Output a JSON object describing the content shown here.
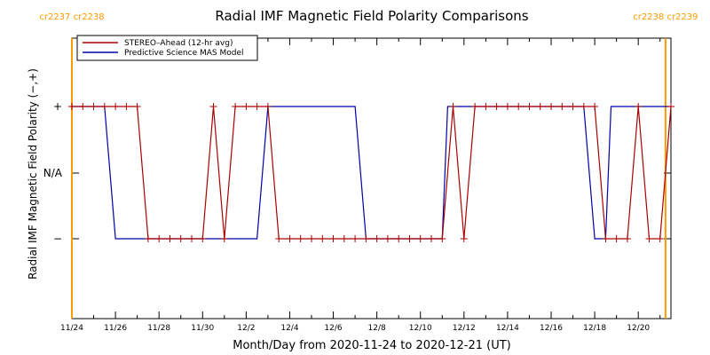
{
  "chart_data": {
    "type": "line",
    "title": "Radial IMF Magnetic Field Polarity Comparisons",
    "xlabel": "Month/Day from 2020-11-24 to 2020-12-21 (UT)",
    "ylabel": "Radial IMF Magnetic Field Polarity (−,+)",
    "x_range": [
      "2020-11-24",
      "2020-12-21 12:00"
    ],
    "y_levels": [
      {
        "label": "−",
        "value": -1
      },
      {
        "label": "N/A",
        "value": 0
      },
      {
        "label": "+",
        "value": 1
      }
    ],
    "x_ticks": [
      "11/24",
      "11/26",
      "11/28",
      "11/30",
      "12/2",
      "12/4",
      "12/6",
      "12/8",
      "12/10",
      "12/12",
      "12/14",
      "12/16",
      "12/18",
      "12/20"
    ],
    "carrington_markers": [
      {
        "date": "2020-11-24",
        "label": "cr2237 cr2238"
      },
      {
        "date": "2020-12-21 06:00",
        "label": "cr2238 cr2239"
      }
    ],
    "marker_color": "#ff9900",
    "grid": false,
    "legend_position": "top-left",
    "series": [
      {
        "name": "STEREO–Ahead (12-hr avg)",
        "color": "#aa0000",
        "marker": "+",
        "points": [
          [
            "2020-11-24 00:00",
            1
          ],
          [
            "2020-11-24 12:00",
            1
          ],
          [
            "2020-11-25 00:00",
            1
          ],
          [
            "2020-11-25 12:00",
            1
          ],
          [
            "2020-11-26 00:00",
            1
          ],
          [
            "2020-11-26 12:00",
            1
          ],
          [
            "2020-11-27 00:00",
            1
          ],
          [
            "2020-11-27 12:00",
            -1
          ],
          [
            "2020-11-28 00:00",
            -1
          ],
          [
            "2020-11-28 12:00",
            -1
          ],
          [
            "2020-11-29 00:00",
            -1
          ],
          [
            "2020-11-29 12:00",
            -1
          ],
          [
            "2020-11-30 00:00",
            -1
          ],
          [
            "2020-11-30 12:00",
            1
          ],
          [
            "2020-12-01 00:00",
            -1
          ],
          [
            "2020-12-01 12:00",
            1
          ],
          [
            "2020-12-02 00:00",
            1
          ],
          [
            "2020-12-02 12:00",
            1
          ],
          [
            "2020-12-03 00:00",
            1
          ],
          [
            "2020-12-03 12:00",
            -1
          ],
          [
            "2020-12-04 00:00",
            -1
          ],
          [
            "2020-12-04 12:00",
            -1
          ],
          [
            "2020-12-05 00:00",
            -1
          ],
          [
            "2020-12-05 12:00",
            -1
          ],
          [
            "2020-12-06 00:00",
            -1
          ],
          [
            "2020-12-06 12:00",
            -1
          ],
          [
            "2020-12-07 00:00",
            -1
          ],
          [
            "2020-12-07 12:00",
            -1
          ],
          [
            "2020-12-08 00:00",
            -1
          ],
          [
            "2020-12-08 12:00",
            -1
          ],
          [
            "2020-12-09 00:00",
            -1
          ],
          [
            "2020-12-09 12:00",
            -1
          ],
          [
            "2020-12-10 00:00",
            -1
          ],
          [
            "2020-12-10 12:00",
            -1
          ],
          [
            "2020-12-11 00:00",
            -1
          ],
          [
            "2020-12-11 12:00",
            1
          ],
          [
            "2020-12-12 00:00",
            -1
          ],
          [
            "2020-12-12 12:00",
            1
          ],
          [
            "2020-12-13 00:00",
            1
          ],
          [
            "2020-12-13 12:00",
            1
          ],
          [
            "2020-12-14 00:00",
            1
          ],
          [
            "2020-12-14 12:00",
            1
          ],
          [
            "2020-12-15 00:00",
            1
          ],
          [
            "2020-12-15 12:00",
            1
          ],
          [
            "2020-12-16 00:00",
            1
          ],
          [
            "2020-12-16 12:00",
            1
          ],
          [
            "2020-12-17 00:00",
            1
          ],
          [
            "2020-12-17 12:00",
            1
          ],
          [
            "2020-12-18 00:00",
            1
          ],
          [
            "2020-12-18 12:00",
            -1
          ],
          [
            "2020-12-19 00:00",
            -1
          ],
          [
            "2020-12-19 12:00",
            -1
          ],
          [
            "2020-12-20 00:00",
            1
          ],
          [
            "2020-12-20 12:00",
            -1
          ],
          [
            "2020-12-21 00:00",
            -1
          ],
          [
            "2020-12-21 12:00",
            1
          ]
        ]
      },
      {
        "name": "Predictive Science MAS Model",
        "color": "#0000aa",
        "points": [
          [
            "2020-11-24 00:00",
            1
          ],
          [
            "2020-11-25 12:00",
            1
          ],
          [
            "2020-11-26 00:00",
            -1
          ],
          [
            "2020-12-02 12:00",
            -1
          ],
          [
            "2020-12-03 00:00",
            1
          ],
          [
            "2020-12-07 00:00",
            1
          ],
          [
            "2020-12-07 12:00",
            -1
          ],
          [
            "2020-12-11 00:00",
            -1
          ],
          [
            "2020-12-11 06:00",
            1
          ],
          [
            "2020-12-17 12:00",
            1
          ],
          [
            "2020-12-18 00:00",
            -1
          ],
          [
            "2020-12-18 12:00",
            -1
          ],
          [
            "2020-12-18 18:00",
            1
          ],
          [
            "2020-12-21 12:00",
            1
          ]
        ]
      }
    ]
  }
}
